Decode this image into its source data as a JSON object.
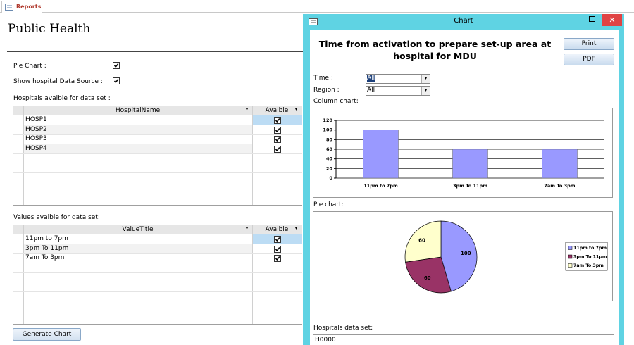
{
  "tab": "Reports",
  "title": "Public Health",
  "options": [
    {
      "label": "Pie Chart :",
      "checked": true
    },
    {
      "label": "Show hospital Data Source :",
      "checked": true
    }
  ],
  "hospitals": {
    "label": "Hospitals avaible for data set :",
    "columns": [
      "HospitalName",
      "Avaible"
    ],
    "rows": [
      [
        "HOSP1",
        true
      ],
      [
        "HOSP2",
        true
      ],
      [
        "HOSP3",
        true
      ],
      [
        "HOSP4",
        true
      ]
    ]
  },
  "value_titles": {
    "label": "Values avaible for data set:",
    "columns": [
      "ValueTitle",
      "Avaible"
    ],
    "rows": [
      [
        "11pm to 7pm",
        true
      ],
      [
        "3pm To 11pm",
        true
      ],
      [
        "7am To 3pm",
        true
      ]
    ]
  },
  "button": "Generate Chart",
  "dialog": {
    "title": "Chart",
    "heading": "Time from activation to prepare set-up area at hospital for MDU",
    "buttons": [
      "Print",
      "PDF"
    ],
    "filters": [
      {
        "label": "Time :",
        "value": "All"
      },
      {
        "label": "Region :",
        "value": "All"
      }
    ],
    "column_label": "Column chart:",
    "pie_label": "Pie chart:",
    "dataset_label": "Hospitals data set:",
    "dataset_value": "H0000"
  },
  "chart_data": [
    {
      "type": "bar",
      "categories": [
        "11pm to 7pm",
        "3pm To 11pm",
        "7am To 3pm"
      ],
      "values": [
        100,
        60,
        60
      ],
      "color": "#9999ff",
      "ylim": [
        0,
        120
      ],
      "yticks": [
        0,
        20,
        40,
        60,
        80,
        100,
        120
      ],
      "grid": true
    },
    {
      "type": "pie",
      "categories": [
        "11pm to 7pm",
        "3pm To 11pm",
        "7am To 3pm"
      ],
      "values": [
        100,
        60,
        60
      ],
      "colors": [
        "#9999ff",
        "#993366",
        "#ffffcc"
      ],
      "legend": "right"
    }
  ]
}
